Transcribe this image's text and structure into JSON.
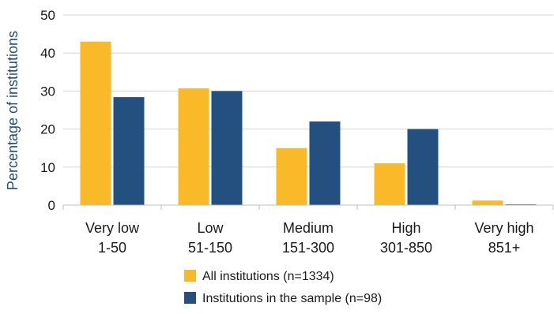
{
  "chart_data": {
    "type": "bar",
    "ylabel": "Percentage of institutions",
    "xlabel": "",
    "ylim": [
      0,
      50
    ],
    "yticks": [
      "0",
      "10",
      "20",
      "30",
      "40",
      "50"
    ],
    "grid": true,
    "legend_position": "bottom-center",
    "categories": [
      {
        "line1": "Very low",
        "line2": "1-50"
      },
      {
        "line1": "Low",
        "line2": "51-150"
      },
      {
        "line1": "Medium",
        "line2": "151-300"
      },
      {
        "line1": "High",
        "line2": "301-850"
      },
      {
        "line1": "Very high",
        "line2": "851+"
      }
    ],
    "series": [
      {
        "name": "All institutions (n=1334)",
        "color": "#f9b928",
        "values": [
          43,
          30.7,
          15,
          11,
          1.2
        ]
      },
      {
        "name": "Institutions in the sample (n=98)",
        "color": "#23507f",
        "values": [
          28.4,
          30,
          22,
          20,
          0.2
        ]
      }
    ]
  }
}
